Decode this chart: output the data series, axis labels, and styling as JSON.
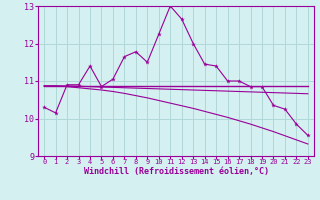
{
  "background_color": "#d4f0f0",
  "grid_color": "#b0d8d8",
  "line_color": "#990099",
  "xlim": [
    -0.5,
    23.5
  ],
  "ylim": [
    9,
    13
  ],
  "xlabel": "Windchill (Refroidissement éolien,°C)",
  "yticks": [
    9,
    10,
    11,
    12,
    13
  ],
  "xticks": [
    0,
    1,
    2,
    3,
    4,
    5,
    6,
    7,
    8,
    9,
    10,
    11,
    12,
    13,
    14,
    15,
    16,
    17,
    18,
    19,
    20,
    21,
    22,
    23
  ],
  "series": [
    [
      10.3,
      10.15,
      10.9,
      10.9,
      11.4,
      10.85,
      11.05,
      11.65,
      11.78,
      11.5,
      12.25,
      13.0,
      12.65,
      12.0,
      11.45,
      11.4,
      11.0,
      11.0,
      10.85,
      10.85,
      10.35,
      10.25,
      9.85,
      9.55
    ],
    [
      10.87,
      10.87,
      10.87,
      10.87,
      10.87,
      10.87,
      10.87,
      10.87,
      10.87,
      10.87,
      10.87,
      10.87,
      10.87,
      10.87,
      10.87,
      10.87,
      10.87,
      10.87,
      10.87,
      10.87,
      10.87,
      10.87,
      10.87,
      10.87
    ],
    [
      10.87,
      10.87,
      10.85,
      10.82,
      10.79,
      10.76,
      10.72,
      10.67,
      10.61,
      10.55,
      10.48,
      10.41,
      10.34,
      10.27,
      10.19,
      10.11,
      10.03,
      9.94,
      9.85,
      9.75,
      9.65,
      9.54,
      9.43,
      9.32
    ],
    [
      10.87,
      10.87,
      10.87,
      10.86,
      10.85,
      10.84,
      10.83,
      10.82,
      10.81,
      10.8,
      10.79,
      10.78,
      10.77,
      10.76,
      10.75,
      10.74,
      10.73,
      10.72,
      10.71,
      10.7,
      10.69,
      10.68,
      10.67,
      10.66
    ]
  ],
  "title_fontsize": 6,
  "xlabel_fontsize": 6,
  "xtick_fontsize": 5,
  "ytick_fontsize": 6
}
